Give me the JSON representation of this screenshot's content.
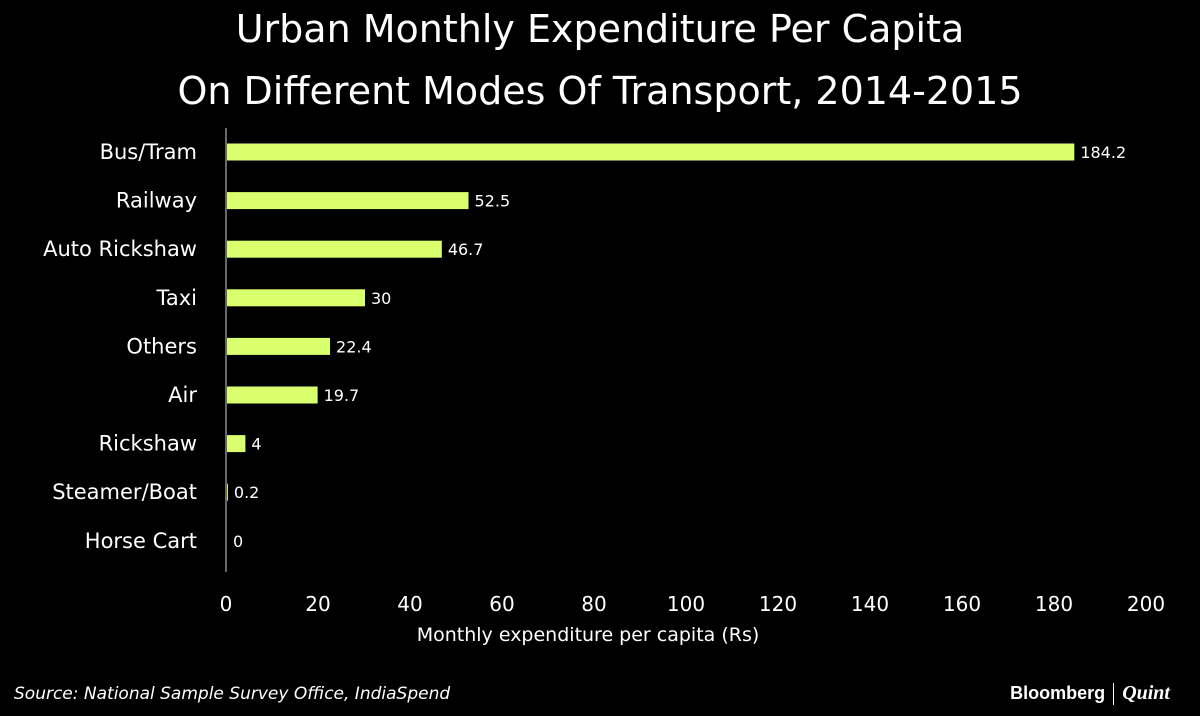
{
  "colors": {
    "bar": "#d9ff6e",
    "background": "#000000",
    "text": "#ffffff",
    "axis": "#8a8a8a"
  },
  "chart_data": {
    "type": "bar",
    "orientation": "horizontal",
    "title_lines": [
      "Urban Monthly Expenditure Per Capita",
      "On Different Modes Of Transport, 2014-2015"
    ],
    "categories": [
      "Bus/Tram",
      "Railway",
      "Auto Rickshaw",
      "Taxi",
      "Others",
      "Air",
      "Rickshaw",
      "Steamer/Boat",
      "Horse Cart"
    ],
    "values": [
      184.2,
      52.5,
      46.7,
      30,
      22.4,
      19.7,
      4,
      0.2,
      0
    ],
    "value_labels": [
      "184.2",
      "52.5",
      "46.7",
      "30",
      "22.4",
      "19.7",
      "4",
      "0.2",
      "0"
    ],
    "xlabel": "Monthly expenditure per capita (Rs)",
    "xlim": [
      0,
      200
    ],
    "xticks": [
      0,
      20,
      40,
      60,
      80,
      100,
      120,
      140,
      160,
      180,
      200
    ],
    "grid": false,
    "legend": "none"
  },
  "footer": {
    "source": "Source: National Sample Survey Office, IndiaSpend"
  },
  "brand": {
    "bloomberg": "Bloomberg",
    "quint": "Quint"
  }
}
